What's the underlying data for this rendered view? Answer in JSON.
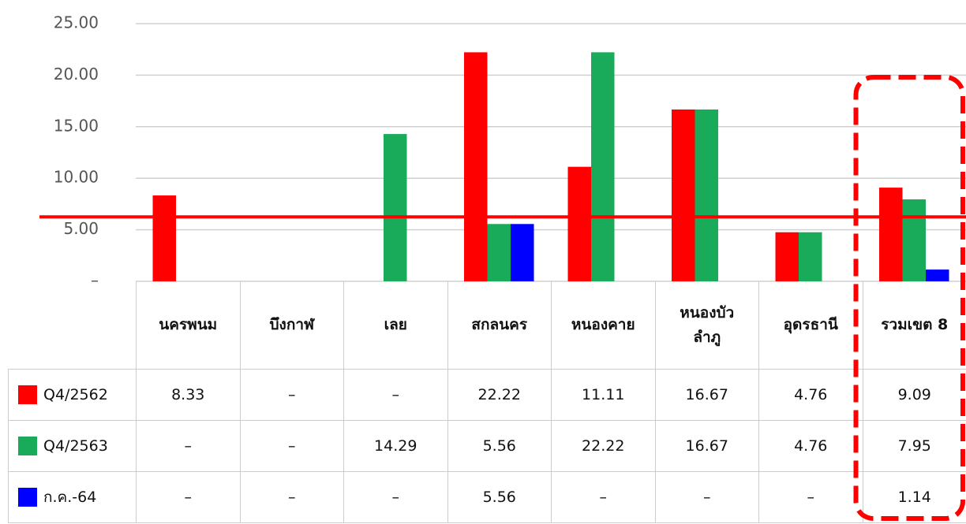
{
  "chart_data": {
    "type": "bar",
    "categories": [
      "นครพนม",
      "บึงกาฬ",
      "เลย",
      "สกลนคร",
      "หนองคาย",
      "หนองบัว\nลำภู",
      "อุดรธานี",
      "รวมเขต 8"
    ],
    "series": [
      {
        "name": "Q4/2562",
        "color": "#ff0000",
        "values": [
          8.33,
          null,
          null,
          22.22,
          11.11,
          16.67,
          4.76,
          9.09
        ],
        "value_labels": [
          "8.33",
          "–",
          "–",
          "22.22",
          "11.11",
          "16.67",
          "4.76",
          "9.09"
        ]
      },
      {
        "name": "Q4/2563",
        "color": "#1aab5a",
        "values": [
          null,
          null,
          14.29,
          5.56,
          22.22,
          16.67,
          4.76,
          7.95
        ],
        "value_labels": [
          "–",
          "–",
          "14.29",
          "5.56",
          "22.22",
          "16.67",
          "4.76",
          "7.95"
        ]
      },
      {
        "name": "ก.ค.-64",
        "color": "#0000ff",
        "values": [
          null,
          null,
          null,
          5.56,
          null,
          null,
          null,
          1.14
        ],
        "value_labels": [
          "–",
          "–",
          "–",
          "5.56",
          "–",
          "–",
          "–",
          "1.14"
        ]
      }
    ],
    "ylim": [
      0,
      25
    ],
    "yticks": [
      {
        "value": 0,
        "label": "–"
      },
      {
        "value": 5,
        "label": "5.00"
      },
      {
        "value": 10,
        "label": "10.00"
      },
      {
        "value": 15,
        "label": "15.00"
      },
      {
        "value": 20,
        "label": "20.00"
      },
      {
        "value": 25,
        "label": "25.00"
      }
    ],
    "grid": true,
    "reference_line": {
      "value": 6.25,
      "color": "#ff0000"
    },
    "highlight_color": "#ff0000"
  }
}
